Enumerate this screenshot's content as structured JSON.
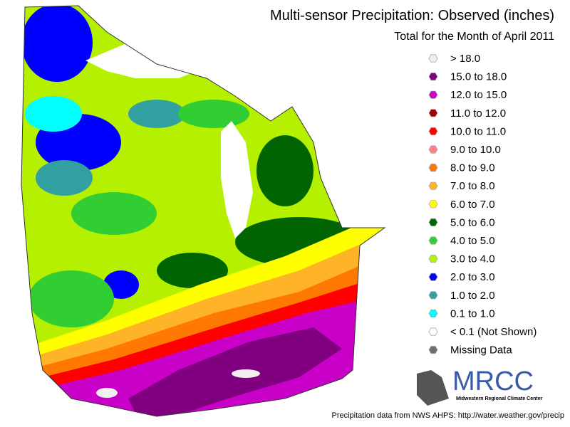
{
  "header": {
    "title": "Multi-sensor Precipitation: Observed (inches)",
    "subtitle": "Total for the Month of April 2011"
  },
  "legend": {
    "items": [
      {
        "label": "> 18.0",
        "color": "#f0f0f0"
      },
      {
        "label": "15.0 to 18.0",
        "color": "#800080"
      },
      {
        "label": "12.0 to 15.0",
        "color": "#c800c8"
      },
      {
        "label": "11.0 to 12.0",
        "color": "#a00000"
      },
      {
        "label": "10.0 to 11.0",
        "color": "#ff0000"
      },
      {
        "label": "9.0 to 10.0",
        "color": "#ff8080"
      },
      {
        "label": "8.0 to 9.0",
        "color": "#ff7800"
      },
      {
        "label": "7.0 to 8.0",
        "color": "#ffb428"
      },
      {
        "label": "6.0 to 7.0",
        "color": "#ffff00"
      },
      {
        "label": "5.0 to 6.0",
        "color": "#006400"
      },
      {
        "label": "4.0 to 5.0",
        "color": "#32cd32"
      },
      {
        "label": "3.0 to 4.0",
        "color": "#b4f000"
      },
      {
        "label": "2.0 to 3.0",
        "color": "#0000ff"
      },
      {
        "label": "1.0 to 2.0",
        "color": "#32a0a0"
      },
      {
        "label": "0.1 to 1.0",
        "color": "#00ffff"
      },
      {
        "label": "< 0.1 (Not Shown)",
        "color": "#ffffff"
      },
      {
        "label": "Missing Data",
        "color": "#707070"
      }
    ]
  },
  "logo": {
    "name": "MRCC",
    "subtitle": "Midwestern Regional Climate Center"
  },
  "footer": "Precipitation data from NWS AHPS:  http://water.weather.gov/precip"
}
